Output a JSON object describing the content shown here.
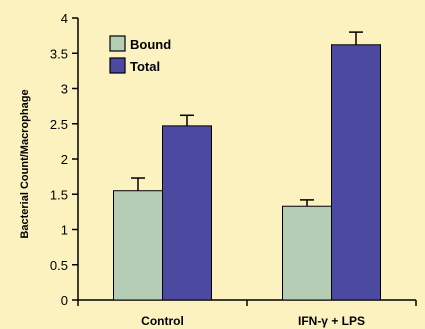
{
  "chart_data": {
    "type": "bar",
    "title": "",
    "xlabel": "",
    "ylabel": "Bacterial Count/Macrophage",
    "categories": [
      "Control",
      "IFN-γ + LPS"
    ],
    "series": [
      {
        "name": "Bound",
        "values": [
          1.55,
          1.33
        ],
        "errors": [
          0.18,
          0.09
        ],
        "color": "#b5cdb5"
      },
      {
        "name": "Total",
        "values": [
          2.47,
          3.62
        ],
        "errors": [
          0.15,
          0.18
        ],
        "color": "#4c4aa0"
      }
    ],
    "ylim": [
      0,
      4
    ],
    "yticks": [
      "0",
      "0.5",
      "1",
      "1.5",
      "2",
      "2.5",
      "3",
      "3.5",
      "4"
    ],
    "grid": false,
    "legend_position": "top-left",
    "background_color": "#fbf2c0",
    "bar_edge_color": "#000000"
  }
}
